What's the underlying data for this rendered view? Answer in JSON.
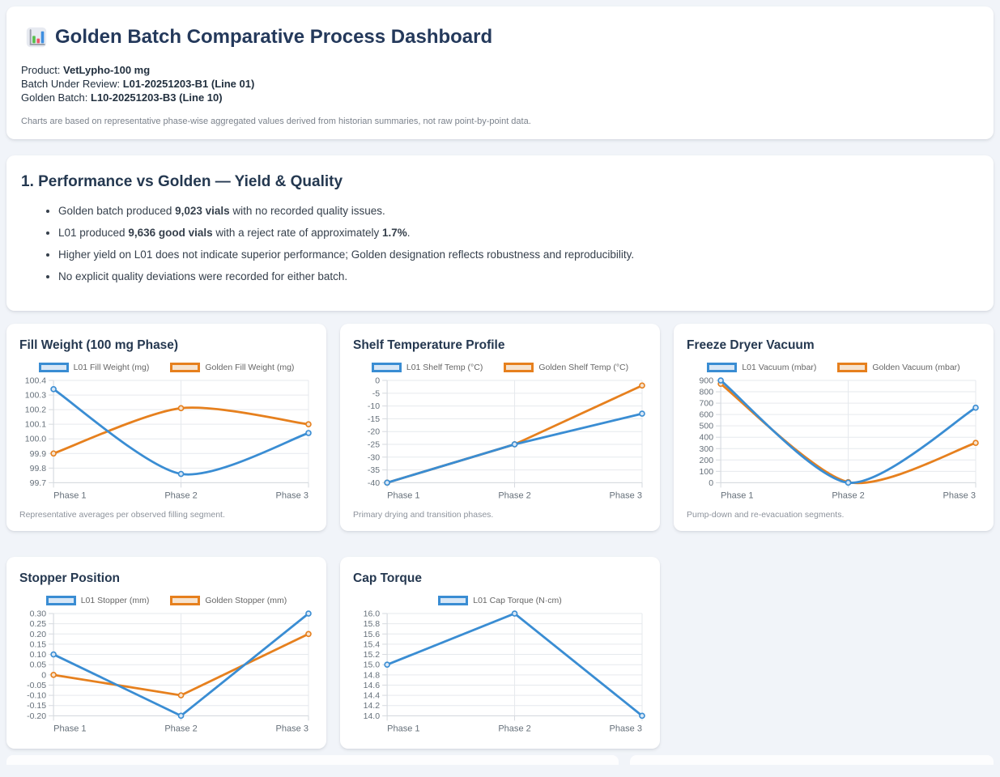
{
  "header": {
    "icon": "bar-chart-icon",
    "title": "Golden Batch Comparative Process Dashboard",
    "meta": [
      {
        "label": "Product:",
        "value": "VetLypho-100 mg"
      },
      {
        "label": "Batch Under Review:",
        "value": "L01-20251203-B1 (Line 01)"
      },
      {
        "label": "Golden Batch:",
        "value": "L10-20251203-B3 (Line 10)"
      }
    ],
    "note": "Charts are based on representative phase-wise aggregated values derived from historian summaries, not raw point-by-point data."
  },
  "section1": {
    "title": "1. Performance vs Golden — Yield & Quality",
    "bullets": [
      {
        "parts": [
          {
            "text": "Golden batch produced ",
            "bold": false
          },
          {
            "text": "9,023 vials",
            "bold": true
          },
          {
            "text": " with no recorded quality issues.",
            "bold": false
          }
        ]
      },
      {
        "parts": [
          {
            "text": "L01 produced ",
            "bold": false
          },
          {
            "text": "9,636 good vials",
            "bold": true
          },
          {
            "text": " with a reject rate of approximately ",
            "bold": false
          },
          {
            "text": "1.7%",
            "bold": true
          },
          {
            "text": ".",
            "bold": false
          }
        ]
      },
      {
        "parts": [
          {
            "text": "Higher yield on L01 does not indicate superior performance; Golden designation reflects robustness and reproducibility.",
            "bold": false
          }
        ]
      },
      {
        "parts": [
          {
            "text": "No explicit quality deviations were recorded for either batch.",
            "bold": false
          }
        ]
      }
    ]
  },
  "chart_data": [
    {
      "type": "line",
      "title": "Fill Weight (100 mg Phase)",
      "categories": [
        "Phase 1",
        "Phase 2",
        "Phase 3"
      ],
      "yticks": [
        "100.4",
        "100.3",
        "100.2",
        "100.1",
        "100.0",
        "99.9",
        "99.8",
        "99.7"
      ],
      "ymax": 100.4,
      "ymin": 99.7,
      "grid": true,
      "legend_position": "top",
      "series": [
        {
          "name": "L01 Fill Weight (mg)",
          "color": "#3a8dd3",
          "swatch_fill": "#d8e7f6",
          "values": [
            100.34,
            99.76,
            100.04
          ],
          "tension": 0.4
        },
        {
          "name": "Golden Fill Weight (mg)",
          "color": "#e6801e",
          "swatch_fill": "#f6e3cf",
          "values": [
            99.9,
            100.21,
            100.1
          ],
          "tension": 0.4
        }
      ],
      "caption": "Representative averages per observed filling segment."
    },
    {
      "type": "line",
      "title": "Shelf Temperature Profile",
      "categories": [
        "Phase 1",
        "Phase 2",
        "Phase 3"
      ],
      "yticks": [
        "0",
        "-5",
        "-10",
        "-15",
        "-20",
        "-25",
        "-30",
        "-35",
        "-40"
      ],
      "ymax": 0,
      "ymin": -40,
      "grid": true,
      "legend_position": "top",
      "series": [
        {
          "name": "L01 Shelf Temp (°C)",
          "color": "#3a8dd3",
          "swatch_fill": "#d8e7f6",
          "values": [
            -40,
            -25,
            -13
          ],
          "tension": 0
        },
        {
          "name": "Golden Shelf Temp (°C)",
          "color": "#e6801e",
          "swatch_fill": "#f6e3cf",
          "values": [
            -40,
            -25,
            -2
          ],
          "tension": 0
        }
      ],
      "caption": "Primary drying and transition phases."
    },
    {
      "type": "line",
      "title": "Freeze Dryer Vacuum",
      "categories": [
        "Phase 1",
        "Phase 2",
        "Phase 3"
      ],
      "yticks": [
        "900",
        "800",
        "700",
        "600",
        "500",
        "400",
        "300",
        "200",
        "100",
        "0"
      ],
      "ymax": 900,
      "ymin": 0,
      "grid": true,
      "legend_position": "top",
      "series": [
        {
          "name": "L01 Vacuum (mbar)",
          "color": "#3a8dd3",
          "swatch_fill": "#d8e7f6",
          "values": [
            900,
            0,
            660
          ],
          "tension": 0.4
        },
        {
          "name": "Golden Vacuum (mbar)",
          "color": "#e6801e",
          "swatch_fill": "#f6e3cf",
          "values": [
            870,
            5,
            350
          ],
          "tension": 0.4
        }
      ],
      "caption": "Pump-down and re-evacuation segments."
    },
    {
      "type": "line",
      "title": "Stopper Position",
      "categories": [
        "Phase 1",
        "Phase 2",
        "Phase 3"
      ],
      "yticks": [
        "0.30",
        "0.25",
        "0.20",
        "0.15",
        "0.10",
        "0.05",
        "0",
        "-0.05",
        "-0.10",
        "-0.15",
        "-0.20"
      ],
      "ymax": 0.3,
      "ymin": -0.2,
      "grid": true,
      "legend_position": "top",
      "series": [
        {
          "name": "L01 Stopper (mm)",
          "color": "#3a8dd3",
          "swatch_fill": "#d8e7f6",
          "values": [
            0.1,
            -0.2,
            0.3
          ],
          "tension": 0
        },
        {
          "name": "Golden Stopper (mm)",
          "color": "#e6801e",
          "swatch_fill": "#f6e3cf",
          "values": [
            0.0,
            -0.1,
            0.2
          ],
          "tension": 0
        }
      ],
      "caption": ""
    },
    {
      "type": "line",
      "title": "Cap Torque",
      "categories": [
        "Phase 1",
        "Phase 2",
        "Phase 3"
      ],
      "yticks": [
        "16.0",
        "15.8",
        "15.6",
        "15.4",
        "15.2",
        "15.0",
        "14.8",
        "14.6",
        "14.4",
        "14.2",
        "14.0"
      ],
      "ymax": 16.0,
      "ymin": 14.0,
      "grid": true,
      "legend_position": "top",
      "series": [
        {
          "name": "L01 Cap Torque (N·cm)",
          "color": "#3a8dd3",
          "swatch_fill": "#d8e7f6",
          "values": [
            15.0,
            16.0,
            14.0
          ],
          "tension": 0
        }
      ],
      "caption": ""
    }
  ]
}
